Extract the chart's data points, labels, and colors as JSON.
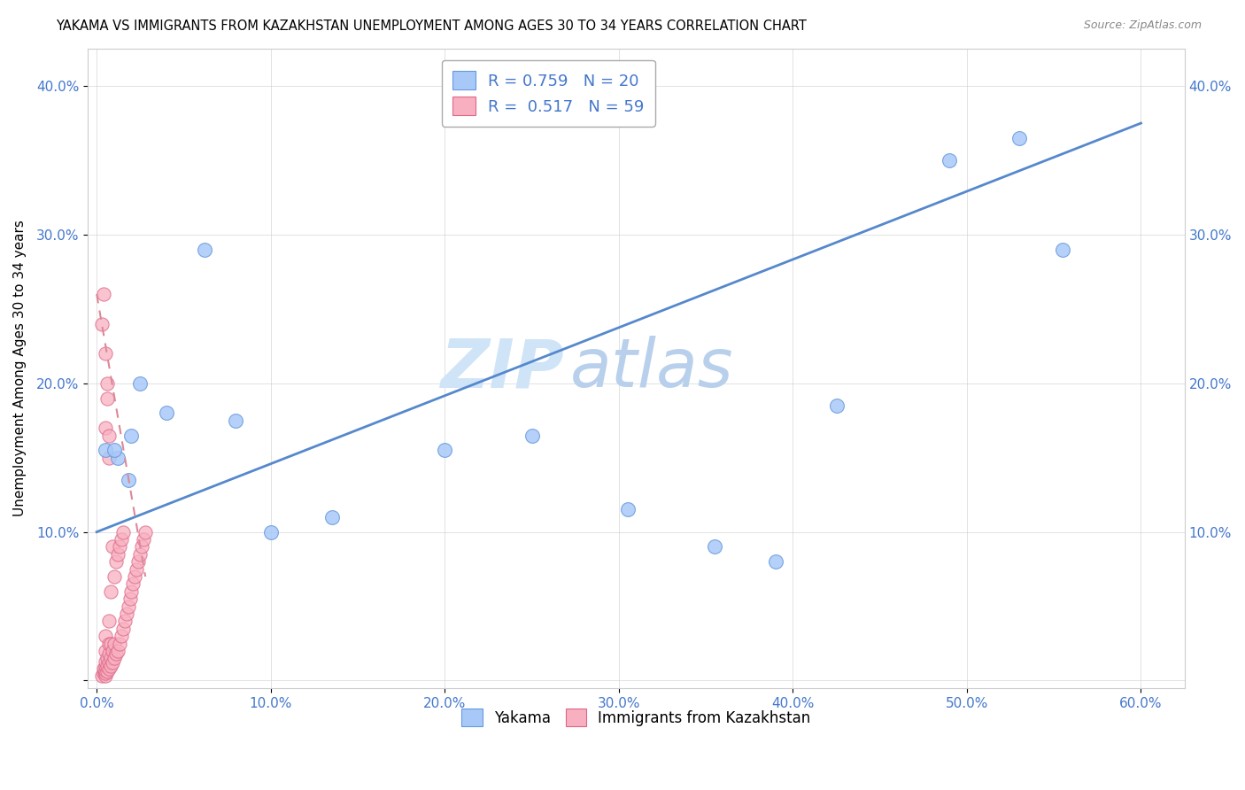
{
  "title": "YAKAMA VS IMMIGRANTS FROM KAZAKHSTAN UNEMPLOYMENT AMONG AGES 30 TO 34 YEARS CORRELATION CHART",
  "source": "Source: ZipAtlas.com",
  "ylabel": "Unemployment Among Ages 30 to 34 years",
  "blue_color": "#a8c8f8",
  "pink_color": "#f8b0c0",
  "blue_edge": "#6699dd",
  "pink_edge": "#dd6688",
  "legend_blue_label": "R = 0.759   N = 20",
  "legend_pink_label": "R =  0.517   N = 59",
  "yakama_label": "Yakama",
  "kaz_label": "Immigrants from Kazakhstan",
  "watermark_top": "ZIP",
  "watermark_bot": "atlas",
  "watermark_color": "#d0e4f8",
  "axis_color": "#4477cc",
  "grid_color": "#cccccc",
  "title_fontsize": 10.5,
  "yakama_x": [
    0.005,
    0.012,
    0.018,
    0.025,
    0.062,
    0.1,
    0.135,
    0.2,
    0.25,
    0.305,
    0.355,
    0.39,
    0.425,
    0.49,
    0.53,
    0.555,
    0.02,
    0.04,
    0.01,
    0.08
  ],
  "yakama_y": [
    0.155,
    0.15,
    0.135,
    0.2,
    0.29,
    0.1,
    0.11,
    0.155,
    0.165,
    0.115,
    0.09,
    0.08,
    0.185,
    0.35,
    0.365,
    0.29,
    0.165,
    0.18,
    0.155,
    0.175
  ],
  "kaz_x": [
    0.003,
    0.003,
    0.004,
    0.004,
    0.004,
    0.005,
    0.005,
    0.005,
    0.005,
    0.005,
    0.005,
    0.005,
    0.005,
    0.005,
    0.006,
    0.006,
    0.006,
    0.006,
    0.006,
    0.007,
    0.007,
    0.007,
    0.007,
    0.007,
    0.007,
    0.007,
    0.008,
    0.008,
    0.008,
    0.008,
    0.009,
    0.009,
    0.009,
    0.01,
    0.01,
    0.01,
    0.011,
    0.011,
    0.012,
    0.012,
    0.013,
    0.013,
    0.014,
    0.014,
    0.015,
    0.015,
    0.016,
    0.017,
    0.018,
    0.019,
    0.02,
    0.021,
    0.022,
    0.023,
    0.024,
    0.025,
    0.026,
    0.027,
    0.028
  ],
  "kaz_y": [
    0.003,
    0.24,
    0.005,
    0.008,
    0.26,
    0.003,
    0.005,
    0.007,
    0.01,
    0.013,
    0.02,
    0.03,
    0.17,
    0.22,
    0.006,
    0.01,
    0.015,
    0.2,
    0.19,
    0.008,
    0.012,
    0.018,
    0.025,
    0.04,
    0.15,
    0.165,
    0.01,
    0.015,
    0.025,
    0.06,
    0.012,
    0.02,
    0.09,
    0.015,
    0.025,
    0.07,
    0.018,
    0.08,
    0.02,
    0.085,
    0.025,
    0.09,
    0.03,
    0.095,
    0.035,
    0.1,
    0.04,
    0.045,
    0.05,
    0.055,
    0.06,
    0.065,
    0.07,
    0.075,
    0.08,
    0.085,
    0.09,
    0.095,
    0.1
  ],
  "blue_line_x": [
    0.0,
    0.6
  ],
  "blue_line_y": [
    0.1,
    0.375
  ],
  "pink_line_x": [
    0.0,
    0.028
  ],
  "pink_line_y": [
    0.26,
    0.07
  ],
  "xlim": [
    -0.005,
    0.625
  ],
  "ylim": [
    -0.005,
    0.425
  ],
  "xticks": [
    0.0,
    0.1,
    0.2,
    0.3,
    0.4,
    0.5,
    0.6
  ],
  "yticks": [
    0.0,
    0.1,
    0.2,
    0.3,
    0.4
  ]
}
